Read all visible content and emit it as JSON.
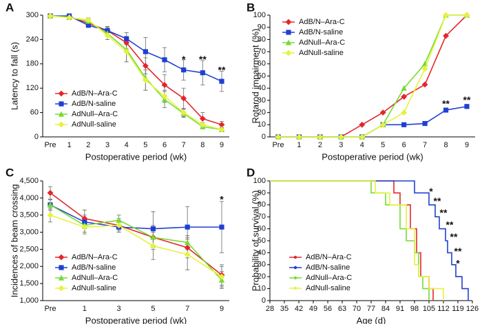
{
  "chart_data": [
    {
      "type": "line",
      "panel": "A",
      "xlabel": "Postoperative period (wk)",
      "ylabel": "Latency to fall (s)",
      "categories": [
        "Pre",
        "1",
        "2",
        "3",
        "4",
        "5",
        "6",
        "7",
        "8",
        "9"
      ],
      "ylim": [
        0,
        300
      ],
      "yticks": [
        0,
        60,
        120,
        180,
        240,
        300
      ],
      "legend": "lower left",
      "series": [
        {
          "name": "AdB/N–Ara-C",
          "color": "#e3262b",
          "marker": "diamond",
          "values": [
            298,
            296,
            280,
            262,
            232,
            175,
            128,
            95,
            45,
            30
          ],
          "errors": [
            2,
            5,
            8,
            10,
            15,
            20,
            25,
            25,
            15,
            8
          ]
        },
        {
          "name": "AdB/N-saline",
          "color": "#1f3fd4",
          "marker": "square",
          "values": [
            298,
            298,
            275,
            262,
            242,
            210,
            190,
            165,
            158,
            137
          ],
          "errors": [
            2,
            3,
            5,
            10,
            15,
            35,
            30,
            25,
            30,
            25
          ]
        },
        {
          "name": "AdNull–Ara-C",
          "color": "#74dc32",
          "marker": "triangle",
          "values": [
            298,
            295,
            285,
            255,
            215,
            145,
            92,
            58,
            25,
            18
          ],
          "errors": [
            2,
            5,
            5,
            15,
            30,
            30,
            20,
            10,
            5,
            5
          ]
        },
        {
          "name": "AdNull-saline",
          "color": "#e6f23c",
          "marker": "diamond",
          "values": [
            298,
            294,
            288,
            250,
            210,
            140,
            100,
            60,
            30,
            18
          ],
          "errors": [
            2,
            5,
            5,
            10,
            25,
            25,
            15,
            10,
            5,
            5
          ]
        }
      ],
      "annotations": [
        {
          "label": "*",
          "x": "7",
          "y": 196
        },
        {
          "label": "**",
          "x": "8",
          "y": 196
        },
        {
          "label": "**",
          "x": "9",
          "y": 170
        }
      ]
    },
    {
      "type": "line",
      "panel": "B",
      "xlabel": "Postoperative period (wk)",
      "ylabel": "Rotarod impairment (%)",
      "categories": [
        "Pre",
        "1",
        "2",
        "3",
        "4",
        "5",
        "6",
        "7",
        "8",
        "9"
      ],
      "ylim": [
        0,
        100
      ],
      "yticks": [
        0,
        10,
        20,
        30,
        40,
        50,
        60,
        70,
        80,
        90,
        100
      ],
      "legend": "upper left",
      "series": [
        {
          "name": "AdB/N–Ara-C",
          "color": "#e3262b",
          "marker": "diamond",
          "values": [
            0,
            0,
            0,
            0,
            10,
            20,
            33,
            43,
            83,
            100
          ]
        },
        {
          "name": "AdB/N-saline",
          "color": "#1f3fd4",
          "marker": "square",
          "values": [
            0,
            0,
            0,
            0,
            0,
            10,
            10,
            11,
            22,
            25
          ]
        },
        {
          "name": "AdNull–Ara-C",
          "color": "#74dc32",
          "marker": "triangle",
          "values": [
            0,
            0,
            0,
            0,
            0,
            10,
            40,
            60,
            100,
            100
          ]
        },
        {
          "name": "AdNull-saline",
          "color": "#e6f23c",
          "marker": "diamond",
          "values": [
            0,
            0,
            0,
            0,
            0,
            10,
            20,
            56,
            100,
            100
          ]
        }
      ],
      "annotations": [
        {
          "label": "**",
          "x": "8",
          "y": 29
        },
        {
          "label": "**",
          "x": "9",
          "y": 32
        }
      ]
    },
    {
      "type": "line",
      "panel": "C",
      "xlabel": "Postoperative period (wk)",
      "ylabel": "Incidences of beam crossing",
      "categories": [
        "Pre",
        "1",
        "3",
        "5",
        "7",
        "9"
      ],
      "ylim": [
        1000,
        4500
      ],
      "yticks": [
        {
          "value": 1000,
          "label": "1,000"
        },
        {
          "value": 1500,
          "label": "1,500"
        },
        {
          "value": 2000,
          "label": "2,000"
        },
        {
          "value": 2500,
          "label": "2,500"
        },
        {
          "value": 3000,
          "label": "3,000"
        },
        {
          "value": 3500,
          "label": "3,500"
        },
        {
          "value": 4000,
          "label": "4,000"
        },
        {
          "value": 4500,
          "label": "4,500"
        }
      ],
      "legend": "lower left",
      "series": [
        {
          "name": "AdB/N–Ara-C",
          "color": "#e3262b",
          "marker": "diamond",
          "values": [
            4150,
            3400,
            3200,
            2850,
            2550,
            1750
          ],
          "errors": [
            180,
            250,
            200,
            350,
            300,
            300
          ]
        },
        {
          "name": "AdB/N-saline",
          "color": "#1f3fd4",
          "marker": "square",
          "values": [
            3800,
            3300,
            3150,
            3100,
            3150,
            3150
          ],
          "errors": [
            150,
            200,
            150,
            500,
            600,
            750
          ]
        },
        {
          "name": "AdNull–Ara-C",
          "color": "#74dc32",
          "marker": "triangle",
          "values": [
            3800,
            3200,
            3350,
            2850,
            2700,
            1600
          ],
          "errors": [
            150,
            200,
            150,
            300,
            200,
            250
          ]
        },
        {
          "name": "AdNull-saline",
          "color": "#e6f23c",
          "marker": "diamond",
          "values": [
            3500,
            3150,
            3200,
            2600,
            2350,
            1700
          ],
          "errors": [
            200,
            200,
            150,
            400,
            450,
            300
          ]
        }
      ],
      "annotations": [
        {
          "label": "*",
          "x": "9",
          "y": 4020
        }
      ]
    },
    {
      "type": "step",
      "panel": "D",
      "xlabel": "Age (d)",
      "ylabel": "Probability of survival (%)",
      "xlim": [
        28,
        126
      ],
      "xticks": [
        28,
        35,
        42,
        49,
        56,
        63,
        70,
        77,
        84,
        91,
        98,
        105,
        112,
        119,
        126
      ],
      "ylim": [
        0,
        100
      ],
      "yticks": [
        0,
        10,
        20,
        30,
        40,
        50,
        60,
        70,
        80,
        90,
        100
      ],
      "legend": "lower left",
      "series": [
        {
          "name": "AdB/N–Ara-C",
          "color": "#e3262b",
          "x": [
            28,
            88,
            91,
            96,
            99,
            101,
            105,
            107
          ],
          "values": [
            100,
            90,
            80,
            60,
            40,
            20,
            10,
            0
          ]
        },
        {
          "name": "AdB/N-saline",
          "color": "#1f3fd4",
          "x": [
            28,
            98,
            105,
            108,
            110,
            113,
            114,
            116,
            118,
            121,
            124
          ],
          "values": [
            100,
            90,
            80,
            70,
            60,
            50,
            40,
            30,
            20,
            10,
            0
          ]
        },
        {
          "name": "AdNull–Ara-C",
          "color": "#74dc32",
          "x": [
            28,
            77,
            84,
            91,
            94,
            98,
            100,
            102,
            105
          ],
          "values": [
            100,
            90,
            80,
            60,
            50,
            40,
            20,
            10,
            0
          ]
        },
        {
          "name": "AdNull-saline",
          "color": "#e6f23c",
          "x": [
            28,
            79,
            86,
            94,
            98,
            100,
            105,
            112
          ],
          "values": [
            100,
            90,
            80,
            60,
            30,
            20,
            10,
            0
          ]
        }
      ],
      "annotations": [
        {
          "label": "*",
          "x": 106,
          "y": 93
        },
        {
          "label": "**",
          "x": 109,
          "y": 85
        },
        {
          "label": "**",
          "x": 112,
          "y": 75
        },
        {
          "label": "**",
          "x": 115,
          "y": 65
        },
        {
          "label": "**",
          "x": 117,
          "y": 55
        },
        {
          "label": "**",
          "x": 119,
          "y": 43
        },
        {
          "label": "*",
          "x": 119,
          "y": 33
        }
      ]
    }
  ]
}
